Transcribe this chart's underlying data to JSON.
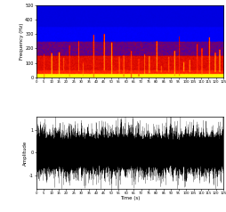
{
  "fig_width": 2.55,
  "fig_height": 2.38,
  "dpi": 100,
  "time_max": 125,
  "freq_max": 500,
  "freq_ticks": [
    0,
    100,
    200,
    300,
    400,
    500
  ],
  "time_ticks": [
    0,
    5,
    10,
    15,
    20,
    25,
    30,
    35,
    40,
    45,
    50,
    55,
    60,
    65,
    70,
    75,
    80,
    85,
    90,
    95,
    100,
    105,
    110,
    115,
    120,
    125
  ],
  "xlabel": "Time (s)",
  "ylabel_top": "Frequency (Hz)",
  "ylabel_bottom": "Amplitude",
  "amp_yticks": [
    -1,
    0,
    1
  ],
  "amp_ylim": [
    -1.6,
    1.6
  ],
  "seed": 42,
  "cmap_colors": [
    [
      0.0,
      "#0000cc"
    ],
    [
      0.25,
      "#0000ff"
    ],
    [
      0.45,
      "#cc0000"
    ],
    [
      0.6,
      "#ff2200"
    ],
    [
      0.75,
      "#ff6600"
    ],
    [
      0.87,
      "#ffaa00"
    ],
    [
      1.0,
      "#ffff00"
    ]
  ]
}
